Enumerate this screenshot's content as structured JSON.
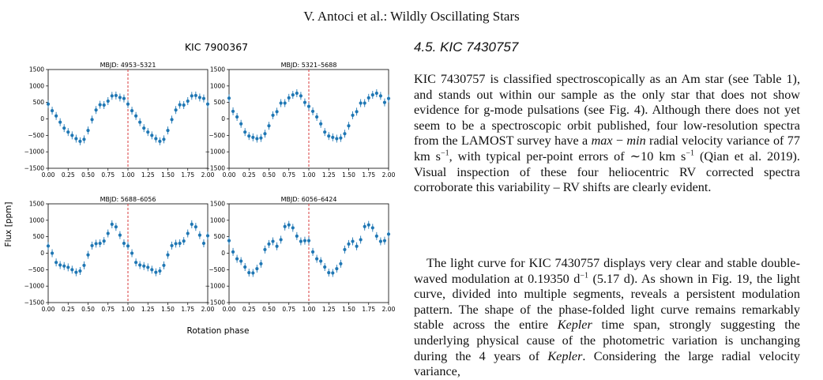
{
  "running_head": "V. Antoci  et al.: Wildly Oscillating Stars",
  "figure": {
    "title": "KIC 7900367",
    "ylabel": "Flux [ppm]",
    "xlabel": "Rotation phase",
    "xticks": [
      "0.00",
      "0.25",
      "0.50",
      "0.75",
      "1.00",
      "1.25",
      "1.50",
      "1.75",
      "2.00"
    ],
    "yticks": [
      "1500",
      "1000",
      "500",
      "0",
      "−500",
      "−1000",
      "−1500"
    ],
    "colors": {
      "points": "#1f77b4",
      "marker_line": "#d62728",
      "axes": "#000000"
    }
  },
  "chart_data": {
    "type": "scatter",
    "xlim": [
      0,
      2
    ],
    "ylim": [
      -1500,
      1500
    ],
    "vline_x": 1.0,
    "grid": false,
    "panels": [
      {
        "title": "MBJD: 4953–5321",
        "x": [
          0.0,
          0.05,
          0.1,
          0.15,
          0.2,
          0.25,
          0.3,
          0.35,
          0.4,
          0.45,
          0.5,
          0.55,
          0.6,
          0.65,
          0.7,
          0.75,
          0.8,
          0.85,
          0.9,
          0.95,
          1.0,
          1.05,
          1.1,
          1.15,
          1.2,
          1.25,
          1.3,
          1.35,
          1.4,
          1.45,
          1.5,
          1.55,
          1.6,
          1.65,
          1.7,
          1.75,
          1.8,
          1.85,
          1.9,
          1.95,
          2.0
        ],
        "y": [
          450,
          250,
          90,
          -100,
          -280,
          -400,
          -500,
          -600,
          -680,
          -620,
          -350,
          -20,
          270,
          430,
          420,
          540,
          700,
          710,
          650,
          620,
          450,
          250,
          90,
          -100,
          -280,
          -400,
          -500,
          -600,
          -680,
          -620,
          -350,
          -20,
          270,
          430,
          420,
          540,
          700,
          710,
          650,
          620,
          450
        ]
      },
      {
        "title": "MBJD: 5321–5688",
        "x": [
          0.0,
          0.05,
          0.1,
          0.15,
          0.2,
          0.25,
          0.3,
          0.35,
          0.4,
          0.45,
          0.5,
          0.55,
          0.6,
          0.65,
          0.7,
          0.75,
          0.8,
          0.85,
          0.9,
          0.95,
          1.0,
          1.05,
          1.1,
          1.15,
          1.2,
          1.25,
          1.3,
          1.35,
          1.4,
          1.45,
          1.5,
          1.55,
          1.6,
          1.65,
          1.7,
          1.75,
          1.8,
          1.85,
          1.9,
          1.95,
          2.0
        ],
        "y": [
          630,
          230,
          60,
          -150,
          -400,
          -520,
          -560,
          -600,
          -580,
          -450,
          -210,
          110,
          220,
          480,
          480,
          640,
          730,
          780,
          700,
          500,
          380,
          230,
          60,
          -150,
          -400,
          -520,
          -560,
          -600,
          -580,
          -450,
          -210,
          110,
          220,
          480,
          480,
          640,
          730,
          780,
          700,
          500,
          620
        ]
      },
      {
        "title": "MBJD: 5688–6056",
        "x": [
          0.0,
          0.05,
          0.1,
          0.15,
          0.2,
          0.25,
          0.3,
          0.35,
          0.4,
          0.45,
          0.5,
          0.55,
          0.6,
          0.65,
          0.7,
          0.75,
          0.8,
          0.85,
          0.9,
          0.95,
          1.0,
          1.05,
          1.1,
          1.15,
          1.2,
          1.25,
          1.3,
          1.35,
          1.4,
          1.45,
          1.5,
          1.55,
          1.6,
          1.65,
          1.7,
          1.75,
          1.8,
          1.85,
          1.9,
          1.95,
          2.0
        ],
        "y": [
          220,
          0,
          -280,
          -360,
          -390,
          -430,
          -500,
          -580,
          -540,
          -370,
          -50,
          230,
          290,
          300,
          370,
          600,
          880,
          800,
          550,
          300,
          220,
          0,
          -280,
          -360,
          -390,
          -430,
          -500,
          -580,
          -540,
          -370,
          -50,
          230,
          290,
          300,
          370,
          600,
          880,
          800,
          550,
          300,
          530
        ]
      },
      {
        "title": "MBJD: 6056–6424",
        "x": [
          0.0,
          0.05,
          0.1,
          0.15,
          0.2,
          0.25,
          0.3,
          0.35,
          0.4,
          0.45,
          0.5,
          0.55,
          0.6,
          0.65,
          0.7,
          0.75,
          0.8,
          0.85,
          0.9,
          0.95,
          1.0,
          1.05,
          1.1,
          1.15,
          1.2,
          1.25,
          1.3,
          1.35,
          1.4,
          1.45,
          1.5,
          1.55,
          1.6,
          1.65,
          1.7,
          1.75,
          1.8,
          1.85,
          1.9,
          1.95,
          2.0
        ],
        "y": [
          380,
          40,
          -170,
          -240,
          -420,
          -590,
          -600,
          -470,
          -320,
          110,
          280,
          360,
          210,
          410,
          810,
          860,
          770,
          520,
          360,
          380,
          380,
          40,
          -170,
          -240,
          -420,
          -590,
          -600,
          -470,
          -320,
          110,
          280,
          360,
          210,
          410,
          810,
          860,
          770,
          520,
          360,
          380,
          580
        ]
      }
    ]
  },
  "section_heading": "4.5. KIC 7430757",
  "para1": [
    "KIC 7430757 is classified spectroscopically as an Am star (see Table 1), and stands out within our sample as the only star that does not show evidence for g-mode pulsations (see Fig. 4). Although there does not yet seem to be a spectroscopic orbit published, four low-resolution spectra from the LAMOST survey have a ",
    "max",
    " − ",
    "min",
    " radial velocity variance of 77 km s",
    "−1",
    ", with typical per-point errors of ∼10 km s",
    "−1",
    " (Qian et al. 2019). Visual inspection of these four heliocentric RV corrected spectra corroborate this variability – RV shifts are clearly evident."
  ],
  "para2": [
    "The light curve for KIC 7430757 displays very clear and stable double-waved modulation at 0.19350 d",
    "−1",
    " (5.17 d). As shown in Fig. 19, the light curve, divided into multiple segments, reveals a persistent modulation pattern. The shape of the phase-folded light curve remains remarkably stable across the entire ",
    "Kepler",
    " time span, strongly suggesting the underlying physical cause of the photometric variation is unchanging during the 4 years of ",
    "Kepler",
    ". Considering the large radial velocity variance,"
  ]
}
